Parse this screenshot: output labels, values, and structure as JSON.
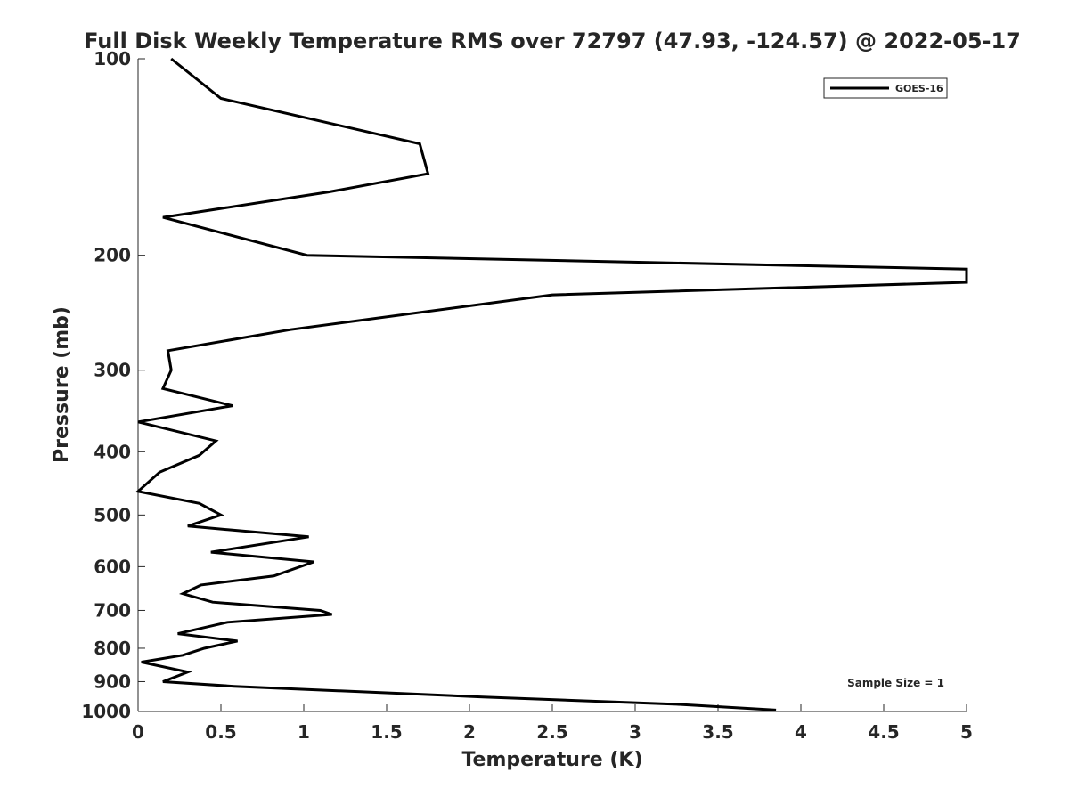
{
  "chart_data": {
    "type": "line",
    "title": "Full Disk Weekly Temperature RMS over 72797 (47.93, -124.57) @ 2022-05-17",
    "xlabel": "Temperature (K)",
    "ylabel": "Pressure (mb)",
    "xlim": [
      0,
      5
    ],
    "ylim": [
      100,
      1000
    ],
    "y_scale": "log",
    "y_reversed": true,
    "x_ticks": [
      "0",
      "0.5",
      "1",
      "1.5",
      "2",
      "2.5",
      "3",
      "3.5",
      "4",
      "4.5",
      "5"
    ],
    "y_ticks": [
      "100",
      "200",
      "300",
      "400",
      "500",
      "600",
      "700",
      "800",
      "900",
      "1000"
    ],
    "grid": false,
    "legend_position": "top-right",
    "annotation": "Sample Size = 1",
    "series": [
      {
        "name": "GOES-16",
        "color": "#000000",
        "points": [
          [
            0.2,
            100
          ],
          [
            0.5,
            115
          ],
          [
            1.7,
            135
          ],
          [
            1.75,
            150
          ],
          [
            1.15,
            160
          ],
          [
            0.15,
            175
          ],
          [
            1.02,
            200
          ],
          [
            5.0,
            210
          ],
          [
            5.0,
            220
          ],
          [
            2.5,
            230
          ],
          [
            0.92,
            260
          ],
          [
            0.18,
            280
          ],
          [
            0.2,
            300
          ],
          [
            0.15,
            320
          ],
          [
            0.57,
            340
          ],
          [
            0.0,
            360
          ],
          [
            0.47,
            385
          ],
          [
            0.37,
            405
          ],
          [
            0.13,
            430
          ],
          [
            0.0,
            460
          ],
          [
            0.37,
            480
          ],
          [
            0.5,
            500
          ],
          [
            0.3,
            520
          ],
          [
            1.03,
            540
          ],
          [
            0.44,
            570
          ],
          [
            1.06,
            590
          ],
          [
            0.82,
            620
          ],
          [
            0.38,
            640
          ],
          [
            0.27,
            660
          ],
          [
            0.45,
            680
          ],
          [
            1.1,
            700
          ],
          [
            1.17,
            710
          ],
          [
            0.54,
            730
          ],
          [
            0.24,
            760
          ],
          [
            0.6,
            780
          ],
          [
            0.4,
            800
          ],
          [
            0.27,
            820
          ],
          [
            0.02,
            840
          ],
          [
            0.3,
            870
          ],
          [
            0.15,
            900
          ],
          [
            0.58,
            915
          ],
          [
            2.08,
            950
          ],
          [
            3.25,
            975
          ],
          [
            3.85,
            995
          ]
        ]
      }
    ]
  }
}
